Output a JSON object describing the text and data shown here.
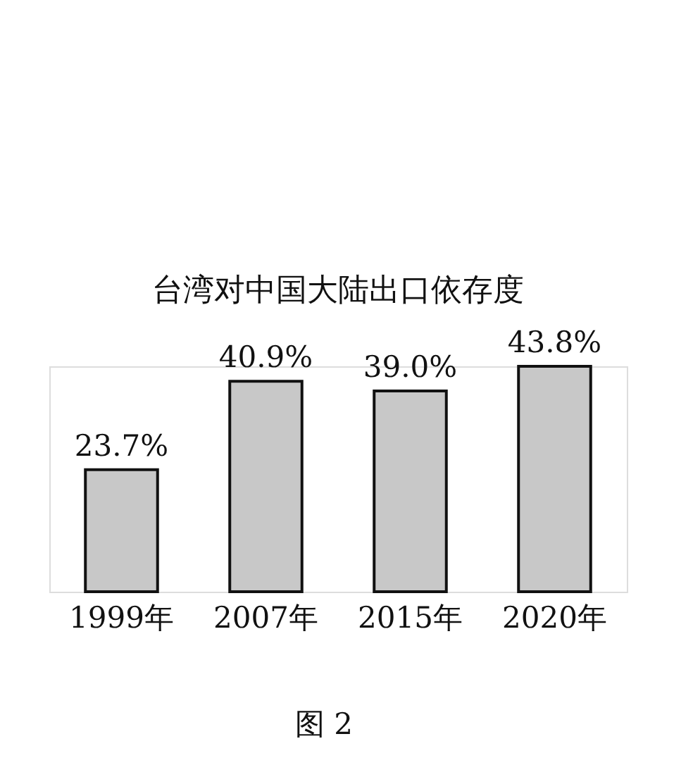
{
  "chart_data": {
    "type": "bar",
    "title": "台湾对中国大陆出口依存度",
    "categories": [
      "1999年",
      "2007年",
      "2015年",
      "2020年"
    ],
    "values": [
      23.7,
      40.9,
      39.0,
      43.8
    ],
    "value_labels": [
      "23.7%",
      "40.9%",
      "39.0%",
      "43.8%"
    ],
    "color": "#c8c8c8",
    "annotations": [
      "图 2"
    ]
  }
}
